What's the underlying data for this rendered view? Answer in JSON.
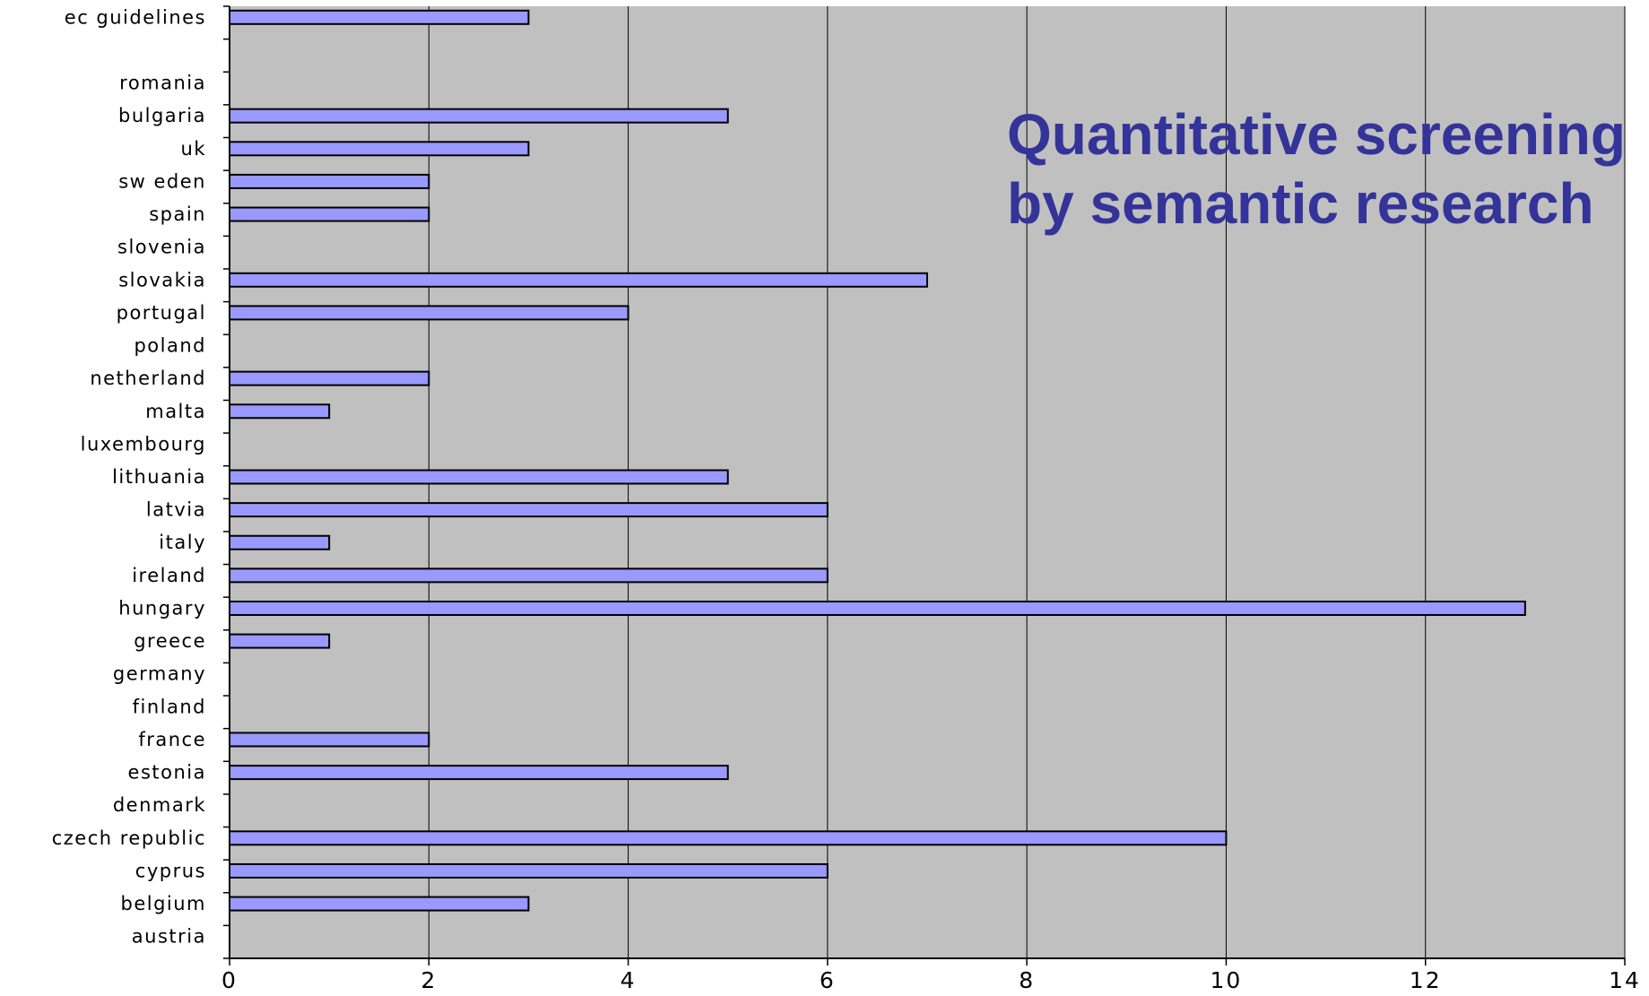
{
  "chart_data": {
    "type": "bar",
    "orientation": "horizontal",
    "title_lines": [
      "Quantitative screening",
      "by semantic research"
    ],
    "xlabel": "",
    "ylabel": "",
    "xlim": [
      0,
      14
    ],
    "x_ticks": [
      0,
      2,
      4,
      6,
      8,
      10,
      12,
      14
    ],
    "grid": true,
    "legend": "none",
    "categories": [
      "ec guidelines",
      "",
      "romania",
      "bulgaria",
      "uk",
      "sw eden",
      "spain",
      "slovenia",
      "slovakia",
      "portugal",
      "poland",
      "netherland",
      "malta",
      "luxembourg",
      "lithuania",
      "latvia",
      "italy",
      "ireland",
      "hungary",
      "greece",
      "germany",
      "finland",
      "france",
      "estonia",
      "denmark",
      "czech republic",
      "cyprus",
      "belgium",
      "austria"
    ],
    "values": [
      3,
      0,
      0,
      5,
      3,
      2,
      2,
      0,
      7,
      4,
      0,
      2,
      1,
      0,
      5,
      6,
      1,
      6,
      13,
      1,
      0,
      0,
      2,
      5,
      0,
      10,
      6,
      3,
      0
    ],
    "colors": {
      "bar_fill": "#9999ff",
      "bar_stroke": "#000000",
      "plot_background": "#c0c0c0",
      "grid": "#000000",
      "title": "#333399"
    }
  }
}
